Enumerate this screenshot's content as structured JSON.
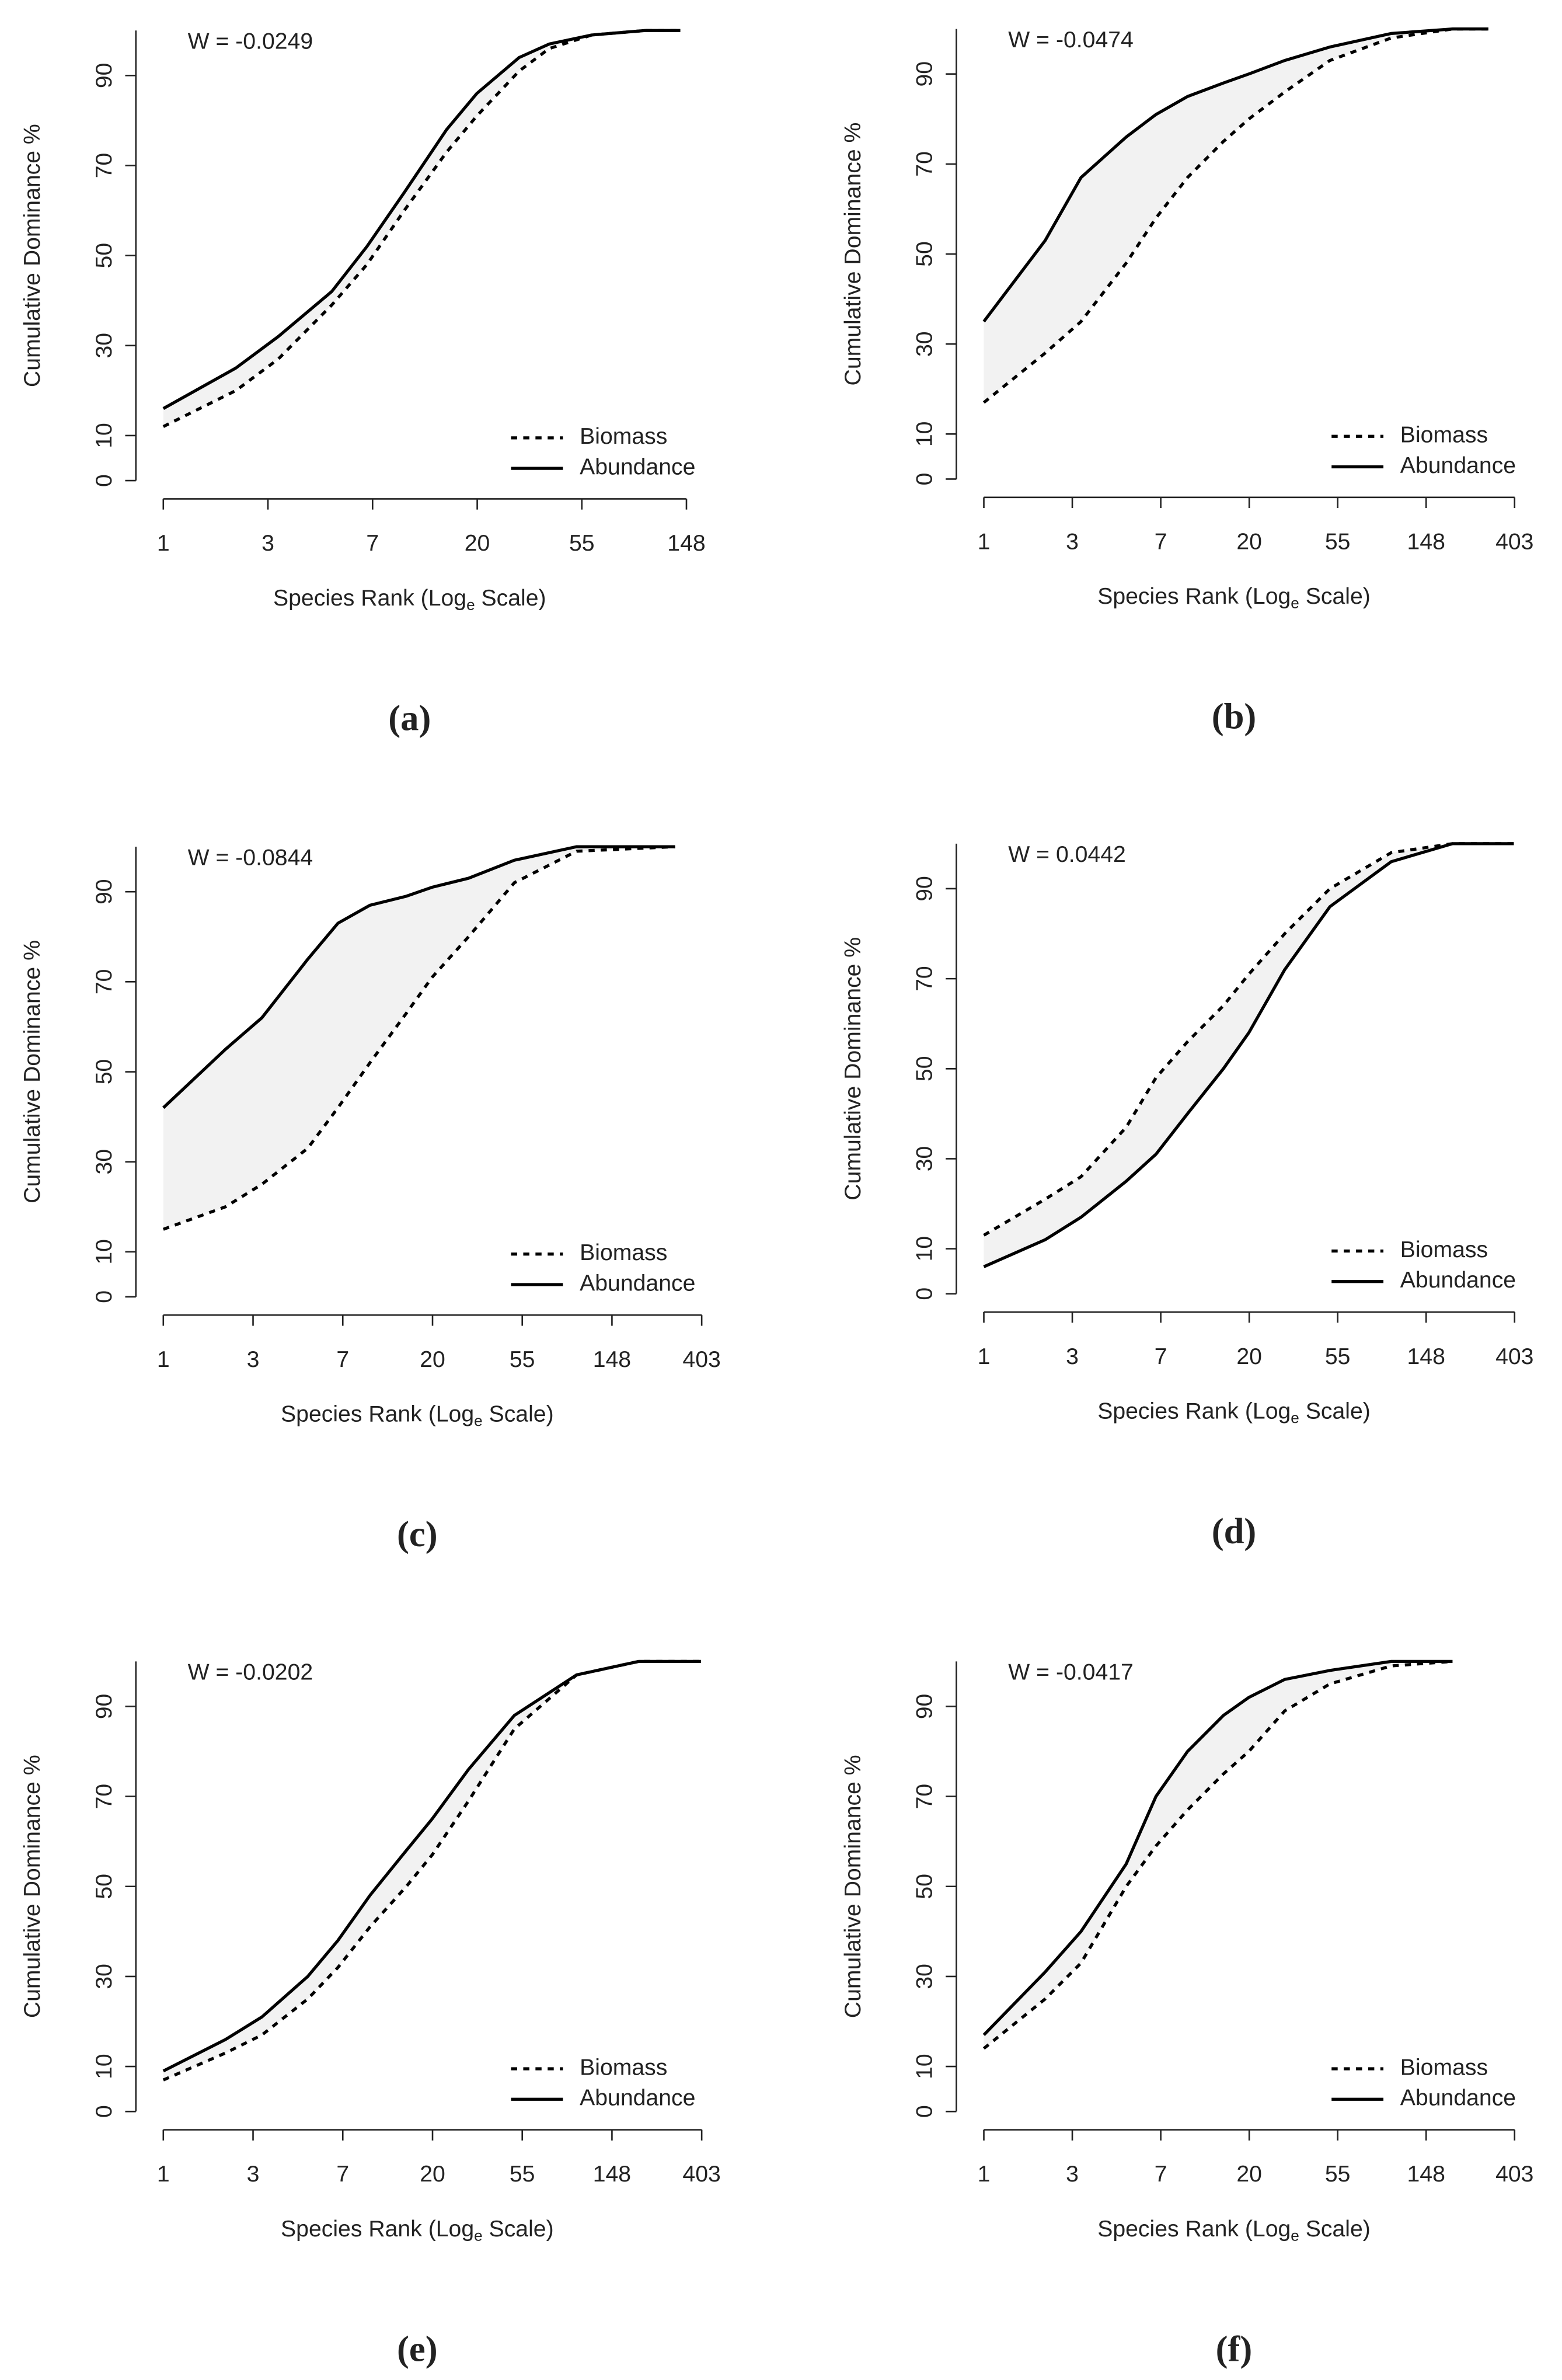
{
  "chart_data": [
    {
      "type": "line",
      "panel": "(a)",
      "annotation": "W = -0.0249",
      "ylabel": "Cumulative Dominance %",
      "xlabel": [
        "Species Rank (Log",
        "e",
        " Scale)"
      ],
      "log_x": true,
      "xlim": [
        1,
        148.4
      ],
      "ylim": [
        0,
        100
      ],
      "xticks": [
        1,
        {
          "value": 2.718,
          "label": "3"
        },
        {
          "value": 7.389,
          "label": "7"
        },
        {
          "value": 20.09,
          "label": "20"
        },
        {
          "value": 54.6,
          "label": "55"
        },
        {
          "value": 148.4,
          "label": "148"
        }
      ],
      "yticks": [
        0,
        10,
        30,
        50,
        70,
        90
      ],
      "legend": "bottom-right",
      "shade": "#f2f2f2",
      "x": [
        1,
        2,
        3,
        5,
        7,
        10,
        15,
        20,
        30,
        40,
        60,
        100,
        140
      ],
      "series": [
        {
          "name": "Biomass",
          "color": "#000000",
          "linestyle": "dashed",
          "values": [
            12,
            20,
            27,
            39,
            48,
            60,
            73,
            81,
            91,
            96,
            99,
            100,
            100
          ]
        },
        {
          "name": "Abundance",
          "color": "#000000",
          "linestyle": "solid",
          "values": [
            16,
            25,
            32,
            42,
            52,
            64,
            78,
            86,
            94,
            97,
            99,
            100,
            100
          ]
        }
      ]
    },
    {
      "type": "line",
      "panel": "(b)",
      "annotation": "W = -0.0474",
      "ylabel": "Cumulative Dominance %",
      "xlabel": [
        "Species Rank (Log",
        "e",
        " Scale)"
      ],
      "log_x": true,
      "xlim": [
        1,
        403.4
      ],
      "ylim": [
        0,
        100
      ],
      "xticks": [
        1,
        {
          "value": 2.718,
          "label": "3"
        },
        {
          "value": 7.389,
          "label": "7"
        },
        {
          "value": 20.09,
          "label": "20"
        },
        {
          "value": 54.6,
          "label": "55"
        },
        {
          "value": 148.4,
          "label": "148"
        },
        {
          "value": 403.4,
          "label": "403"
        }
      ],
      "yticks": [
        0,
        10,
        30,
        50,
        70,
        90
      ],
      "legend": "bottom-right",
      "shade": "#f2f2f2",
      "x": [
        1,
        2,
        3,
        5,
        7,
        10,
        15,
        20,
        30,
        50,
        100,
        200,
        300
      ],
      "series": [
        {
          "name": "Biomass",
          "color": "#000000",
          "linestyle": "dashed",
          "values": [
            17,
            28,
            35,
            48,
            58,
            67,
            75,
            80,
            86,
            93,
            98,
            100,
            100
          ]
        },
        {
          "name": "Abundance",
          "color": "#000000",
          "linestyle": "solid",
          "values": [
            35,
            53,
            67,
            76,
            81,
            85,
            88,
            90,
            93,
            96,
            99,
            100,
            100
          ]
        }
      ]
    },
    {
      "type": "line",
      "panel": "(c)",
      "annotation": "W = -0.0844",
      "ylabel": "Cumulative Dominance %",
      "xlabel": [
        "Species Rank (Log",
        "e",
        " Scale)"
      ],
      "log_x": true,
      "xlim": [
        1,
        403.4
      ],
      "ylim": [
        0,
        100
      ],
      "xticks": [
        1,
        {
          "value": 2.718,
          "label": "3"
        },
        {
          "value": 7.389,
          "label": "7"
        },
        {
          "value": 20.09,
          "label": "20"
        },
        {
          "value": 54.6,
          "label": "55"
        },
        {
          "value": 148.4,
          "label": "148"
        },
        {
          "value": 403.4,
          "label": "403"
        }
      ],
      "yticks": [
        0,
        10,
        30,
        50,
        70,
        90
      ],
      "legend": "bottom-right",
      "shade": "#f2f2f2",
      "x": [
        1,
        2,
        3,
        5,
        7,
        10,
        15,
        20,
        30,
        50,
        100,
        300
      ],
      "series": [
        {
          "name": "Biomass",
          "color": "#000000",
          "linestyle": "dashed",
          "values": [
            15,
            20,
            25,
            33,
            42,
            52,
            63,
            71,
            80,
            92,
            99,
            100
          ]
        },
        {
          "name": "Abundance",
          "color": "#000000",
          "linestyle": "solid",
          "values": [
            42,
            55,
            62,
            75,
            83,
            87,
            89,
            91,
            93,
            97,
            100,
            100
          ]
        }
      ]
    },
    {
      "type": "line",
      "panel": "(d)",
      "annotation": "W = 0.0442",
      "ylabel": "Cumulative Dominance %",
      "xlabel": [
        "Species Rank (Log",
        "e",
        " Scale)"
      ],
      "log_x": true,
      "xlim": [
        1,
        403.4
      ],
      "ylim": [
        0,
        100
      ],
      "xticks": [
        1,
        {
          "value": 2.718,
          "label": "3"
        },
        {
          "value": 7.389,
          "label": "7"
        },
        {
          "value": 20.09,
          "label": "20"
        },
        {
          "value": 54.6,
          "label": "55"
        },
        {
          "value": 148.4,
          "label": "148"
        },
        {
          "value": 403.4,
          "label": "403"
        }
      ],
      "yticks": [
        0,
        10,
        30,
        50,
        70,
        90
      ],
      "legend": "bottom-right",
      "shade": "#f2f2f2",
      "x": [
        1,
        2,
        3,
        5,
        7,
        10,
        15,
        20,
        30,
        50,
        100,
        200,
        400
      ],
      "series": [
        {
          "name": "Biomass",
          "color": "#000000",
          "linestyle": "dashed",
          "values": [
            13,
            21,
            26,
            37,
            48,
            56,
            64,
            71,
            80,
            90,
            98,
            100,
            100
          ]
        },
        {
          "name": "Abundance",
          "color": "#000000",
          "linestyle": "solid",
          "values": [
            6,
            12,
            17,
            25,
            31,
            40,
            50,
            58,
            72,
            86,
            96,
            100,
            100
          ]
        }
      ]
    },
    {
      "type": "line",
      "panel": "(e)",
      "annotation": "W = -0.0202",
      "ylabel": "Cumulative Dominance %",
      "xlabel": [
        "Species Rank (Log",
        "e",
        " Scale)"
      ],
      "log_x": true,
      "xlim": [
        1,
        403.4
      ],
      "ylim": [
        0,
        100
      ],
      "xticks": [
        1,
        {
          "value": 2.718,
          "label": "3"
        },
        {
          "value": 7.389,
          "label": "7"
        },
        {
          "value": 20.09,
          "label": "20"
        },
        {
          "value": 54.6,
          "label": "55"
        },
        {
          "value": 148.4,
          "label": "148"
        },
        {
          "value": 403.4,
          "label": "403"
        }
      ],
      "yticks": [
        0,
        10,
        30,
        50,
        70,
        90
      ],
      "legend": "bottom-right",
      "shade": "#f2f2f2",
      "x": [
        1,
        2,
        3,
        5,
        7,
        10,
        15,
        20,
        30,
        50,
        100,
        200,
        400
      ],
      "series": [
        {
          "name": "Biomass",
          "color": "#000000",
          "linestyle": "dashed",
          "values": [
            7,
            13,
            17,
            25,
            32,
            41,
            50,
            57,
            69,
            85,
            97,
            100,
            100
          ]
        },
        {
          "name": "Abundance",
          "color": "#000000",
          "linestyle": "solid",
          "values": [
            9,
            16,
            21,
            30,
            38,
            48,
            58,
            65,
            76,
            88,
            97,
            100,
            100
          ]
        }
      ]
    },
    {
      "type": "line",
      "panel": "(f)",
      "annotation": "W = -0.0417",
      "ylabel": "Cumulative Dominance %",
      "xlabel": [
        "Species Rank (Log",
        "e",
        " Scale)"
      ],
      "log_x": true,
      "xlim": [
        1,
        403.4
      ],
      "ylim": [
        0,
        100
      ],
      "xticks": [
        1,
        {
          "value": 2.718,
          "label": "3"
        },
        {
          "value": 7.389,
          "label": "7"
        },
        {
          "value": 20.09,
          "label": "20"
        },
        {
          "value": 54.6,
          "label": "55"
        },
        {
          "value": 148.4,
          "label": "148"
        },
        {
          "value": 403.4,
          "label": "403"
        }
      ],
      "yticks": [
        0,
        10,
        30,
        50,
        70,
        90
      ],
      "legend": "bottom-right",
      "shade": "#f2f2f2",
      "x": [
        1,
        2,
        3,
        5,
        7,
        10,
        15,
        20,
        30,
        50,
        100,
        200
      ],
      "series": [
        {
          "name": "Biomass",
          "color": "#000000",
          "linestyle": "dashed",
          "values": [
            14,
            25,
            33,
            50,
            59,
            67,
            75,
            80,
            89,
            95,
            99,
            100
          ]
        },
        {
          "name": "Abundance",
          "color": "#000000",
          "linestyle": "solid",
          "values": [
            17,
            31,
            40,
            55,
            70,
            80,
            88,
            92,
            96,
            98,
            100,
            100
          ]
        }
      ]
    }
  ]
}
